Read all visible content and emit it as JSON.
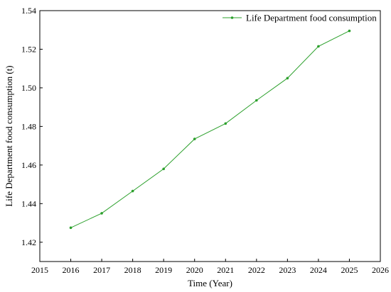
{
  "chart_data": {
    "type": "line",
    "title": "",
    "xlabel": "Time (Year)",
    "ylabel": "Life Department food consumption (t)",
    "xlim": [
      2015,
      2026
    ],
    "ylim": [
      1.41,
      1.54
    ],
    "x_ticks": [
      "2015",
      "2016",
      "2017",
      "2018",
      "2019",
      "2020",
      "2021",
      "2022",
      "2023",
      "2024",
      "2025",
      "2026"
    ],
    "y_ticks": [
      "1.42",
      "1.44",
      "1.46",
      "1.48",
      "1.50",
      "1.52",
      "1.54"
    ],
    "grid": false,
    "legend_position": "top-right",
    "series": [
      {
        "name": "Life Department food consumption",
        "color": "#2ca02c",
        "marker": "dot",
        "x": [
          2016,
          2017,
          2018,
          2019,
          2020,
          2021,
          2022,
          2023,
          2024,
          2025
        ],
        "y": [
          1.4275,
          1.435,
          1.4465,
          1.458,
          1.4735,
          1.4815,
          1.4935,
          1.505,
          1.5215,
          1.5295
        ]
      }
    ]
  }
}
